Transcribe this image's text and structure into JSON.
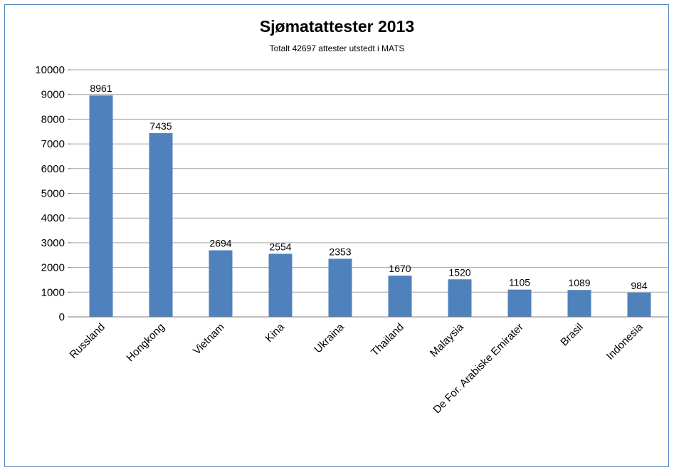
{
  "chart_data": {
    "type": "bar",
    "title": "Sjømatattester 2013",
    "subtitle": "Totalt 42697 attester utstedt i MATS",
    "categories": [
      "Russland",
      "Hongkong",
      "Vietnam",
      "Kina",
      "Ukraina",
      "Thailand",
      "Malaysia",
      "De For. Arabiske Emirater",
      "Brasil",
      "Indonesia"
    ],
    "series": [
      {
        "values": [
          8961,
          7435,
          2694,
          2554,
          2353,
          1670,
          1520,
          1105,
          1089,
          984
        ]
      }
    ],
    "ylim": [
      0,
      10000
    ],
    "yticks": [
      0,
      1000,
      2000,
      3000,
      4000,
      5000,
      6000,
      7000,
      8000,
      9000,
      10000
    ],
    "grid": true,
    "legend": "none",
    "data_labels": true,
    "bar_color": "#4f81bd",
    "frame_color": "#4f81bd",
    "grid_color": "#a6a6a6"
  }
}
